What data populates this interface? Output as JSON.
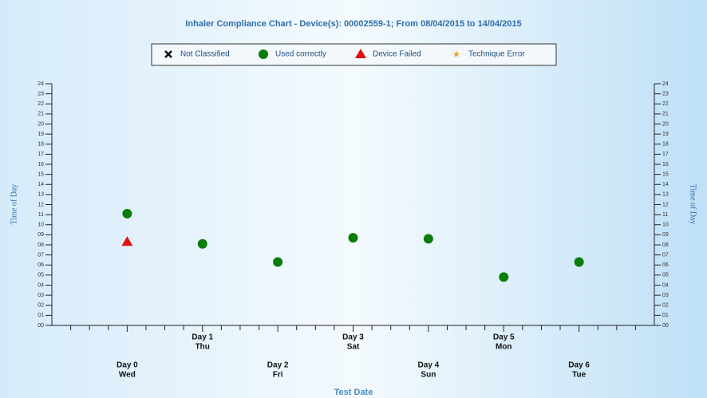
{
  "chart_data": {
    "type": "scatter",
    "title": "Inhaler Compliance Chart - Device(s): 00002559-1; From 08/04/2015 to 14/04/2015",
    "x_label": "Test Date",
    "y_label": "Time of Day",
    "y2_label": "Time of Day",
    "categories": [
      "Day 0",
      "Day 1",
      "Day 2",
      "Day 3",
      "Day 4",
      "Day 5",
      "Day 6"
    ],
    "day_names": [
      "Wed",
      "Thu",
      "Fri",
      "Sat",
      "Sun",
      "Mon",
      "Tue"
    ],
    "series": [
      {
        "name": "Not Classified",
        "color": "#111111",
        "marker": "x",
        "values": [
          null,
          null,
          null,
          null,
          null,
          null,
          null
        ]
      },
      {
        "name": "Used correctly",
        "color": "#0a7d0a",
        "marker": "circle",
        "values": [
          11.1,
          8.1,
          6.3,
          8.7,
          8.6,
          4.8,
          6.3
        ]
      },
      {
        "name": "Device Failed",
        "color": "#e01010",
        "marker": "triangle",
        "values": [
          8.3,
          null,
          null,
          null,
          null,
          null,
          null
        ]
      },
      {
        "name": "Technique Error",
        "color": "#f0a020",
        "marker": "star",
        "values": [
          null,
          null,
          null,
          null,
          null,
          null,
          null
        ]
      }
    ],
    "ylim": [
      0,
      24
    ],
    "yticks": [
      {
        "value": 0,
        "label": "00"
      },
      {
        "value": 1,
        "label": "01"
      },
      {
        "value": 2,
        "label": "02"
      },
      {
        "value": 3,
        "label": "03"
      },
      {
        "value": 4,
        "label": "04"
      },
      {
        "value": 5,
        "label": "05"
      },
      {
        "value": 6,
        "label": "06"
      },
      {
        "value": 7,
        "label": "07"
      },
      {
        "value": 8,
        "label": "08"
      },
      {
        "value": 9,
        "label": "09"
      },
      10,
      11,
      12,
      13,
      14,
      15,
      16,
      17,
      18,
      19,
      20,
      21,
      22,
      23,
      24
    ],
    "y2lim": [
      0,
      24
    ],
    "y2ticks": [
      {
        "value": 0,
        "label": "00"
      },
      {
        "value": 1,
        "label": "01"
      },
      {
        "value": 2,
        "label": "02"
      },
      {
        "value": 3,
        "label": "03"
      },
      {
        "value": 4,
        "label": "04"
      },
      {
        "value": 5,
        "label": "05"
      },
      {
        "value": 6,
        "label": "06"
      },
      {
        "value": 7,
        "label": "07"
      },
      {
        "value": 8,
        "label": "08"
      },
      {
        "value": 9,
        "label": "09"
      },
      10,
      11,
      12,
      13,
      14,
      15,
      16,
      17,
      18,
      19,
      20,
      21,
      22,
      23,
      24
    ]
  }
}
